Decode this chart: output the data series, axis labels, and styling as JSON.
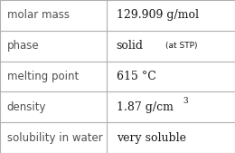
{
  "rows": [
    {
      "label": "molar mass",
      "value": "129.909 g/mol",
      "type": "plain"
    },
    {
      "label": "phase",
      "value": "solid",
      "type": "phase",
      "sub": "(at STP)"
    },
    {
      "label": "melting point",
      "value": "615 °C",
      "type": "plain"
    },
    {
      "label": "density",
      "value": "1.87 g/cm",
      "type": "super",
      "super": "3"
    },
    {
      "label": "solubility in water",
      "value": "very soluble",
      "type": "plain"
    }
  ],
  "col_split": 0.455,
  "bg_color": "#ffffff",
  "border_color": "#b0b0b0",
  "label_font_size": 8.5,
  "value_font_size": 9.0,
  "sub_font_size": 6.5,
  "super_font_size": 6.5,
  "label_color": "#505050",
  "value_color": "#1a1a1a",
  "label_font": "DejaVu Sans",
  "value_font": "DejaVu Serif"
}
